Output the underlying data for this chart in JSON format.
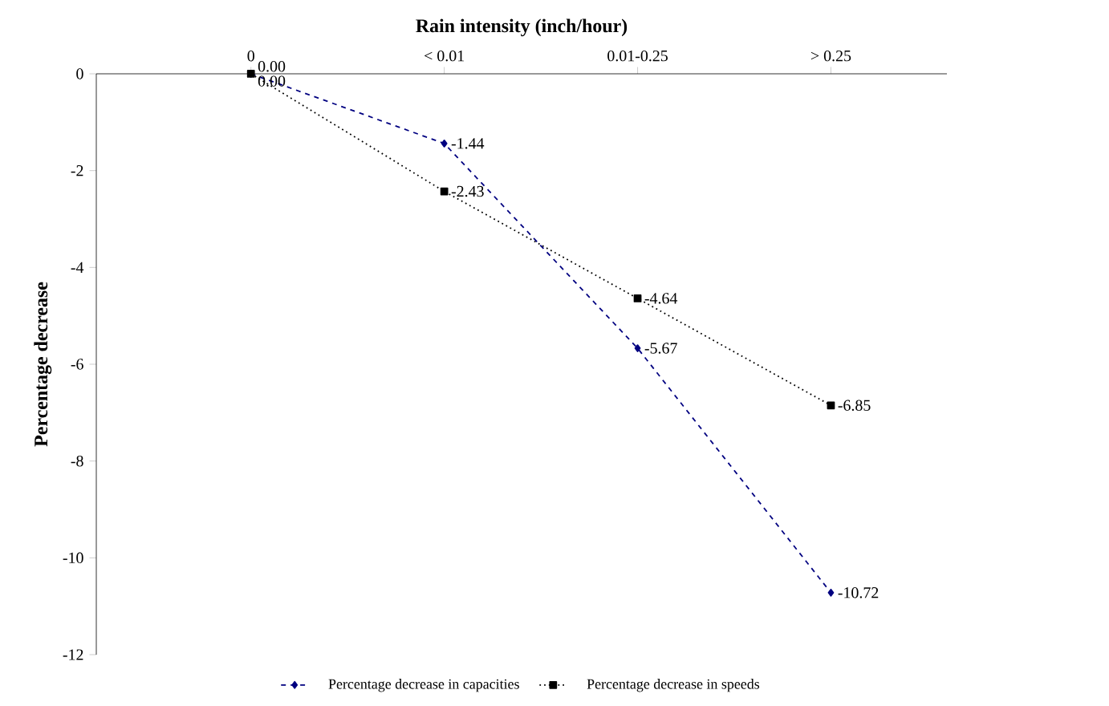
{
  "chart_data": {
    "type": "line",
    "xlabel": "Rain intensity (inch/hour)",
    "ylabel": "Percentage decrease",
    "categories": [
      "0",
      "< 0.01",
      "0.01-0.25",
      "> 0.25"
    ],
    "series": [
      {
        "name": "Percentage decrease in capacities",
        "color": "#000080",
        "values": [
          0,
          -1.44,
          -5.67,
          -10.72
        ],
        "value_labels": [
          "0.00",
          "-1.44",
          "-5.67",
          "-10.72"
        ],
        "marker": "diamond",
        "line_style": "dashed"
      },
      {
        "name": "Percentage decrease in speeds",
        "color": "#000000",
        "values": [
          0,
          -2.43,
          -4.64,
          -6.85
        ],
        "value_labels": [
          "0.00",
          "-2.43",
          "-4.64",
          "-6.85"
        ],
        "marker": "square",
        "line_style": "dotted"
      }
    ],
    "ylim": [
      -12,
      0
    ],
    "yticks": [
      -12,
      -10,
      -8,
      -6,
      -4,
      -2,
      0
    ],
    "legend": "bottom",
    "grid": false
  }
}
